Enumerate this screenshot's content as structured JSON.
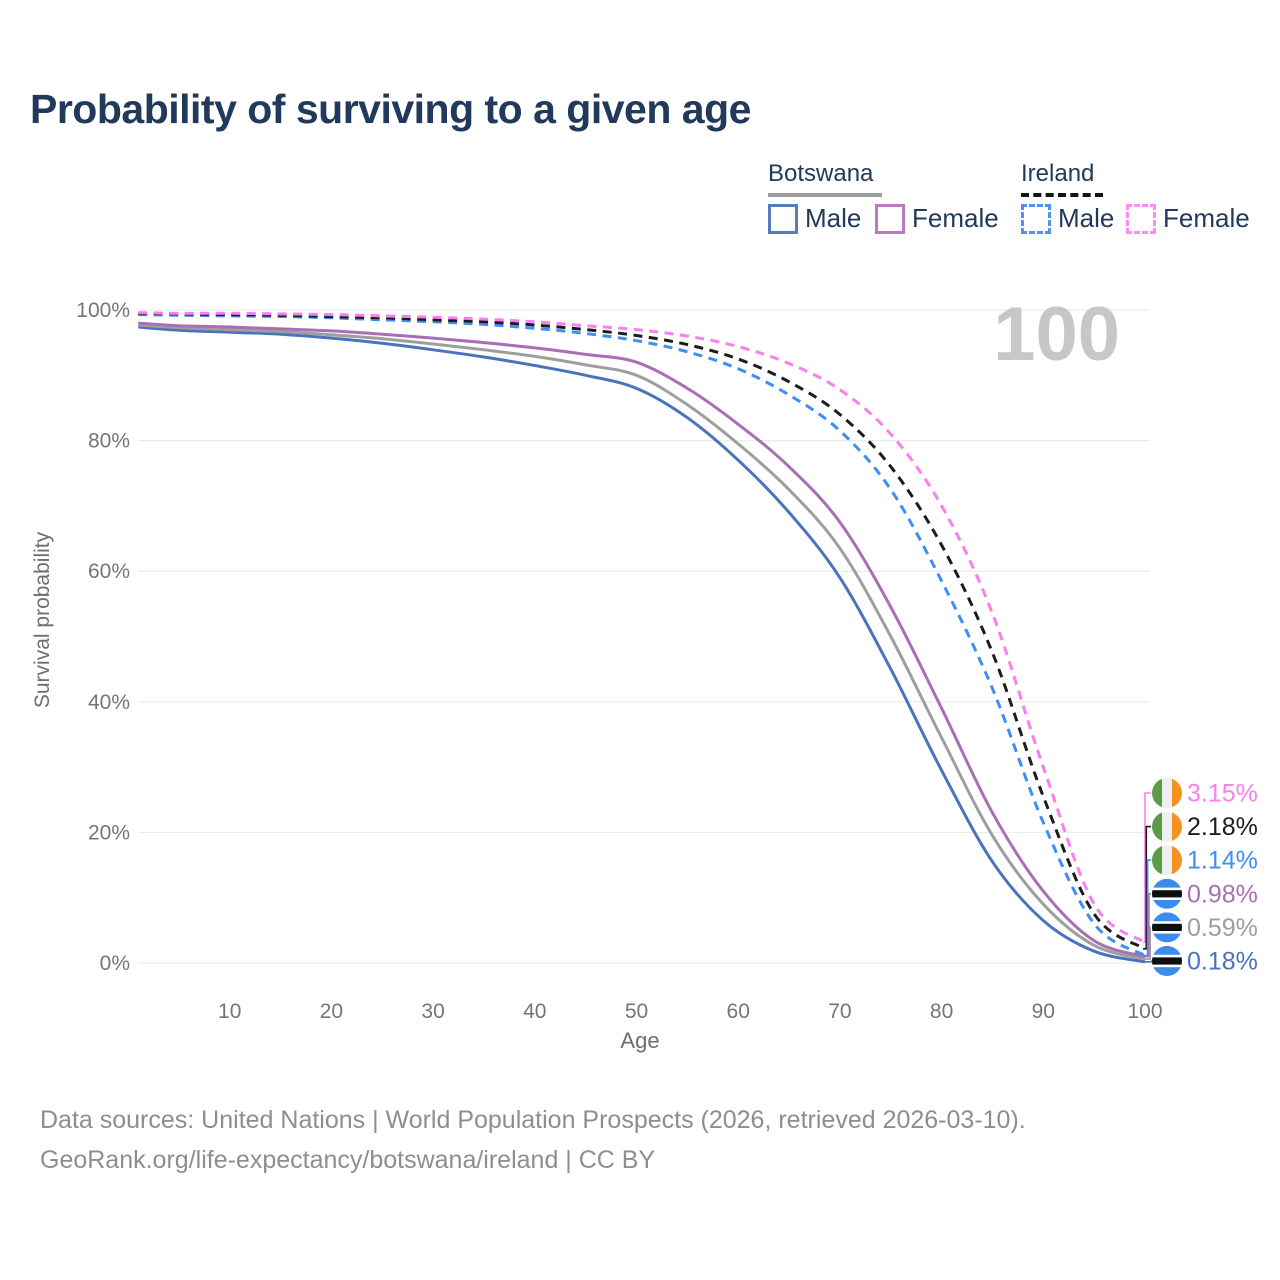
{
  "title": "Probability of surviving to a given age",
  "hover_value": "100",
  "legend": {
    "groups": [
      {
        "name": "Botswana",
        "line_style": "solid",
        "underline_color": "#9C9C9C",
        "items": [
          {
            "label": "Male",
            "color": "#4A73BE"
          },
          {
            "label": "Female",
            "color": "#A96FB5"
          }
        ]
      },
      {
        "name": "Ireland",
        "line_style": "dashed",
        "underline_color": "#141414",
        "items": [
          {
            "label": "Male",
            "color": "#3E8EF7"
          },
          {
            "label": "Female",
            "color": "#FB7EF0"
          }
        ]
      }
    ]
  },
  "chart_data": {
    "type": "line",
    "title": "Probability of surviving to a given age",
    "xlabel": "Age",
    "ylabel": "Survival probability",
    "xlim": [
      0,
      100
    ],
    "ylim": [
      0,
      100
    ],
    "grid": "horizontal-only",
    "grid_color": "#ECECEC",
    "x_ticks": [
      10,
      20,
      30,
      40,
      50,
      60,
      70,
      80,
      90,
      100
    ],
    "y_ticks": [
      0,
      20,
      40,
      60,
      80,
      100
    ],
    "y_tick_labels": [
      "0%",
      "20%",
      "40%",
      "60%",
      "80%",
      "100%"
    ],
    "legend_position": "top-right",
    "x": [
      1,
      5,
      10,
      15,
      20,
      25,
      30,
      35,
      40,
      45,
      50,
      55,
      60,
      65,
      70,
      75,
      80,
      85,
      90,
      95,
      100
    ],
    "series": [
      {
        "name": "Botswana Male",
        "country": "Botswana",
        "sex": "male",
        "color": "#4A73BE",
        "dash": "solid",
        "flag": "botswana",
        "end_label": "0.18%",
        "values": [
          97.4,
          96.9,
          96.6,
          96.3,
          95.7,
          94.9,
          93.9,
          92.8,
          91.5,
          90.0,
          88.0,
          83.5,
          77.0,
          69.0,
          59.0,
          45.0,
          29.5,
          15.5,
          6.5,
          1.8,
          0.18
        ]
      },
      {
        "name": "Botswana Both sexes",
        "country": "Botswana",
        "sex": "both",
        "color": "#9E9E9E",
        "dash": "solid",
        "flag": "botswana",
        "end_label": "0.59%",
        "values": [
          97.7,
          97.3,
          97.0,
          96.7,
          96.2,
          95.6,
          94.8,
          93.9,
          92.9,
          91.6,
          90.0,
          85.5,
          79.5,
          72.5,
          63.5,
          50.0,
          34.5,
          19.5,
          9.0,
          2.7,
          0.59
        ]
      },
      {
        "name": "Botswana Female",
        "country": "Botswana",
        "sex": "female",
        "color": "#A96FB5",
        "dash": "solid",
        "flag": "botswana",
        "end_label": "0.98%",
        "values": [
          98.0,
          97.6,
          97.4,
          97.1,
          96.8,
          96.3,
          95.7,
          95.0,
          94.2,
          93.2,
          92.0,
          88.0,
          82.5,
          76.0,
          67.5,
          54.5,
          39.0,
          23.0,
          11.0,
          3.4,
          0.98
        ]
      },
      {
        "name": "Ireland Male",
        "country": "Ireland",
        "sex": "male",
        "color": "#3E8EF7",
        "dash": "dashed",
        "flag": "ireland",
        "end_label": "1.14%",
        "values": [
          99.3,
          99.2,
          99.1,
          99.0,
          98.8,
          98.5,
          98.2,
          97.8,
          97.2,
          96.4,
          95.3,
          93.6,
          91.0,
          87.0,
          81.5,
          72.5,
          58.5,
          42.0,
          21.5,
          6.0,
          1.14
        ]
      },
      {
        "name": "Ireland Both sexes",
        "country": "Ireland",
        "sex": "both",
        "color": "#1C1C1C",
        "dash": "dashed",
        "flag": "ireland",
        "end_label": "2.18%",
        "values": [
          99.5,
          99.4,
          99.3,
          99.2,
          99.0,
          98.8,
          98.5,
          98.2,
          97.7,
          97.0,
          96.1,
          94.7,
          92.5,
          89.0,
          84.0,
          76.0,
          64.0,
          47.5,
          25.5,
          7.5,
          2.18
        ]
      },
      {
        "name": "Ireland Female",
        "country": "Ireland",
        "sex": "female",
        "color": "#FB7EF0",
        "dash": "dashed",
        "flag": "ireland",
        "end_label": "3.15%",
        "values": [
          99.6,
          99.5,
          99.5,
          99.4,
          99.3,
          99.1,
          98.9,
          98.6,
          98.2,
          97.6,
          97.0,
          96.0,
          94.4,
          91.8,
          87.8,
          81.0,
          70.0,
          53.5,
          30.0,
          9.0,
          3.15
        ]
      }
    ],
    "end_labels_top_to_bottom": [
      "3.15%",
      "2.18%",
      "1.14%",
      "0.98%",
      "0.59%",
      "0.18%"
    ],
    "hover_age": "100"
  },
  "flags": {
    "ireland": {
      "green": "#5B9C48",
      "white": "#EFEFEF",
      "orange": "#F6921E"
    },
    "botswana": {
      "blue": "#3C8CF0",
      "stripe_black": "#0E0E0E",
      "stripe_white": "#FFFFFF"
    }
  },
  "footer": {
    "line1": "Data sources: United Nations | World Population Prospects (2026, retrieved 2026-03-10).",
    "line2": "GeoRank.org/life-expectancy/botswana/ireland | CC BY"
  }
}
